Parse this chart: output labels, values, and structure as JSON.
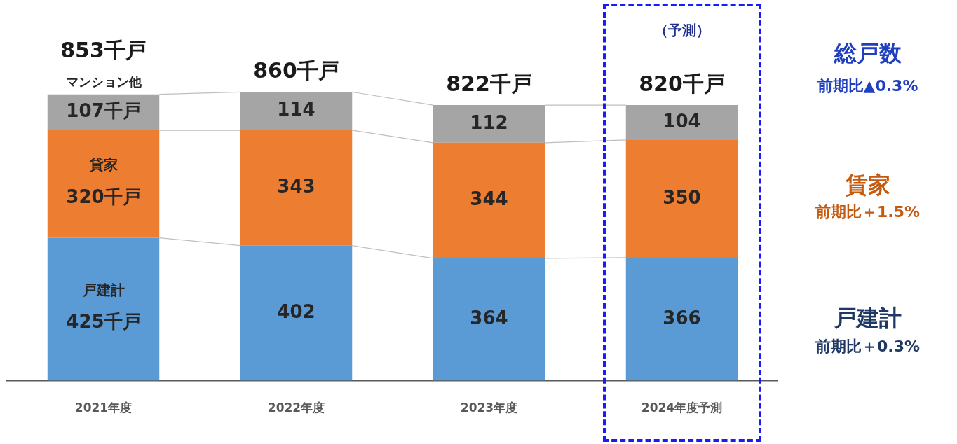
{
  "chart_data": {
    "type": "bar",
    "stacked": true,
    "categories": [
      "2021年度",
      "2022年度",
      "2023年度",
      "2024年度予測"
    ],
    "series": [
      {
        "name": "戸建計",
        "color": "#5b9bd5",
        "values": [
          425,
          402,
          364,
          366
        ],
        "value_labels": [
          "425千戸",
          "402",
          "364",
          "366"
        ]
      },
      {
        "name": "貸家",
        "color": "#ed7d31",
        "values": [
          320,
          343,
          344,
          350
        ],
        "value_labels": [
          "320千戸",
          "343",
          "344",
          "350"
        ]
      },
      {
        "name": "マンション他",
        "color": "#a5a5a5",
        "values": [
          107,
          114,
          112,
          104
        ],
        "value_labels": [
          "107千戸",
          "114",
          "112",
          "104"
        ]
      }
    ],
    "totals": [
      "853千戸",
      "860千戸",
      "822千戸",
      "820千戸"
    ],
    "legend": false,
    "grid": false,
    "annotations": [
      "（予測）",
      "総戸数",
      "前期比▲0.3%",
      "賃家",
      "前期比＋1.5%",
      "戸建計",
      "前期比＋0.3%"
    ]
  }
}
